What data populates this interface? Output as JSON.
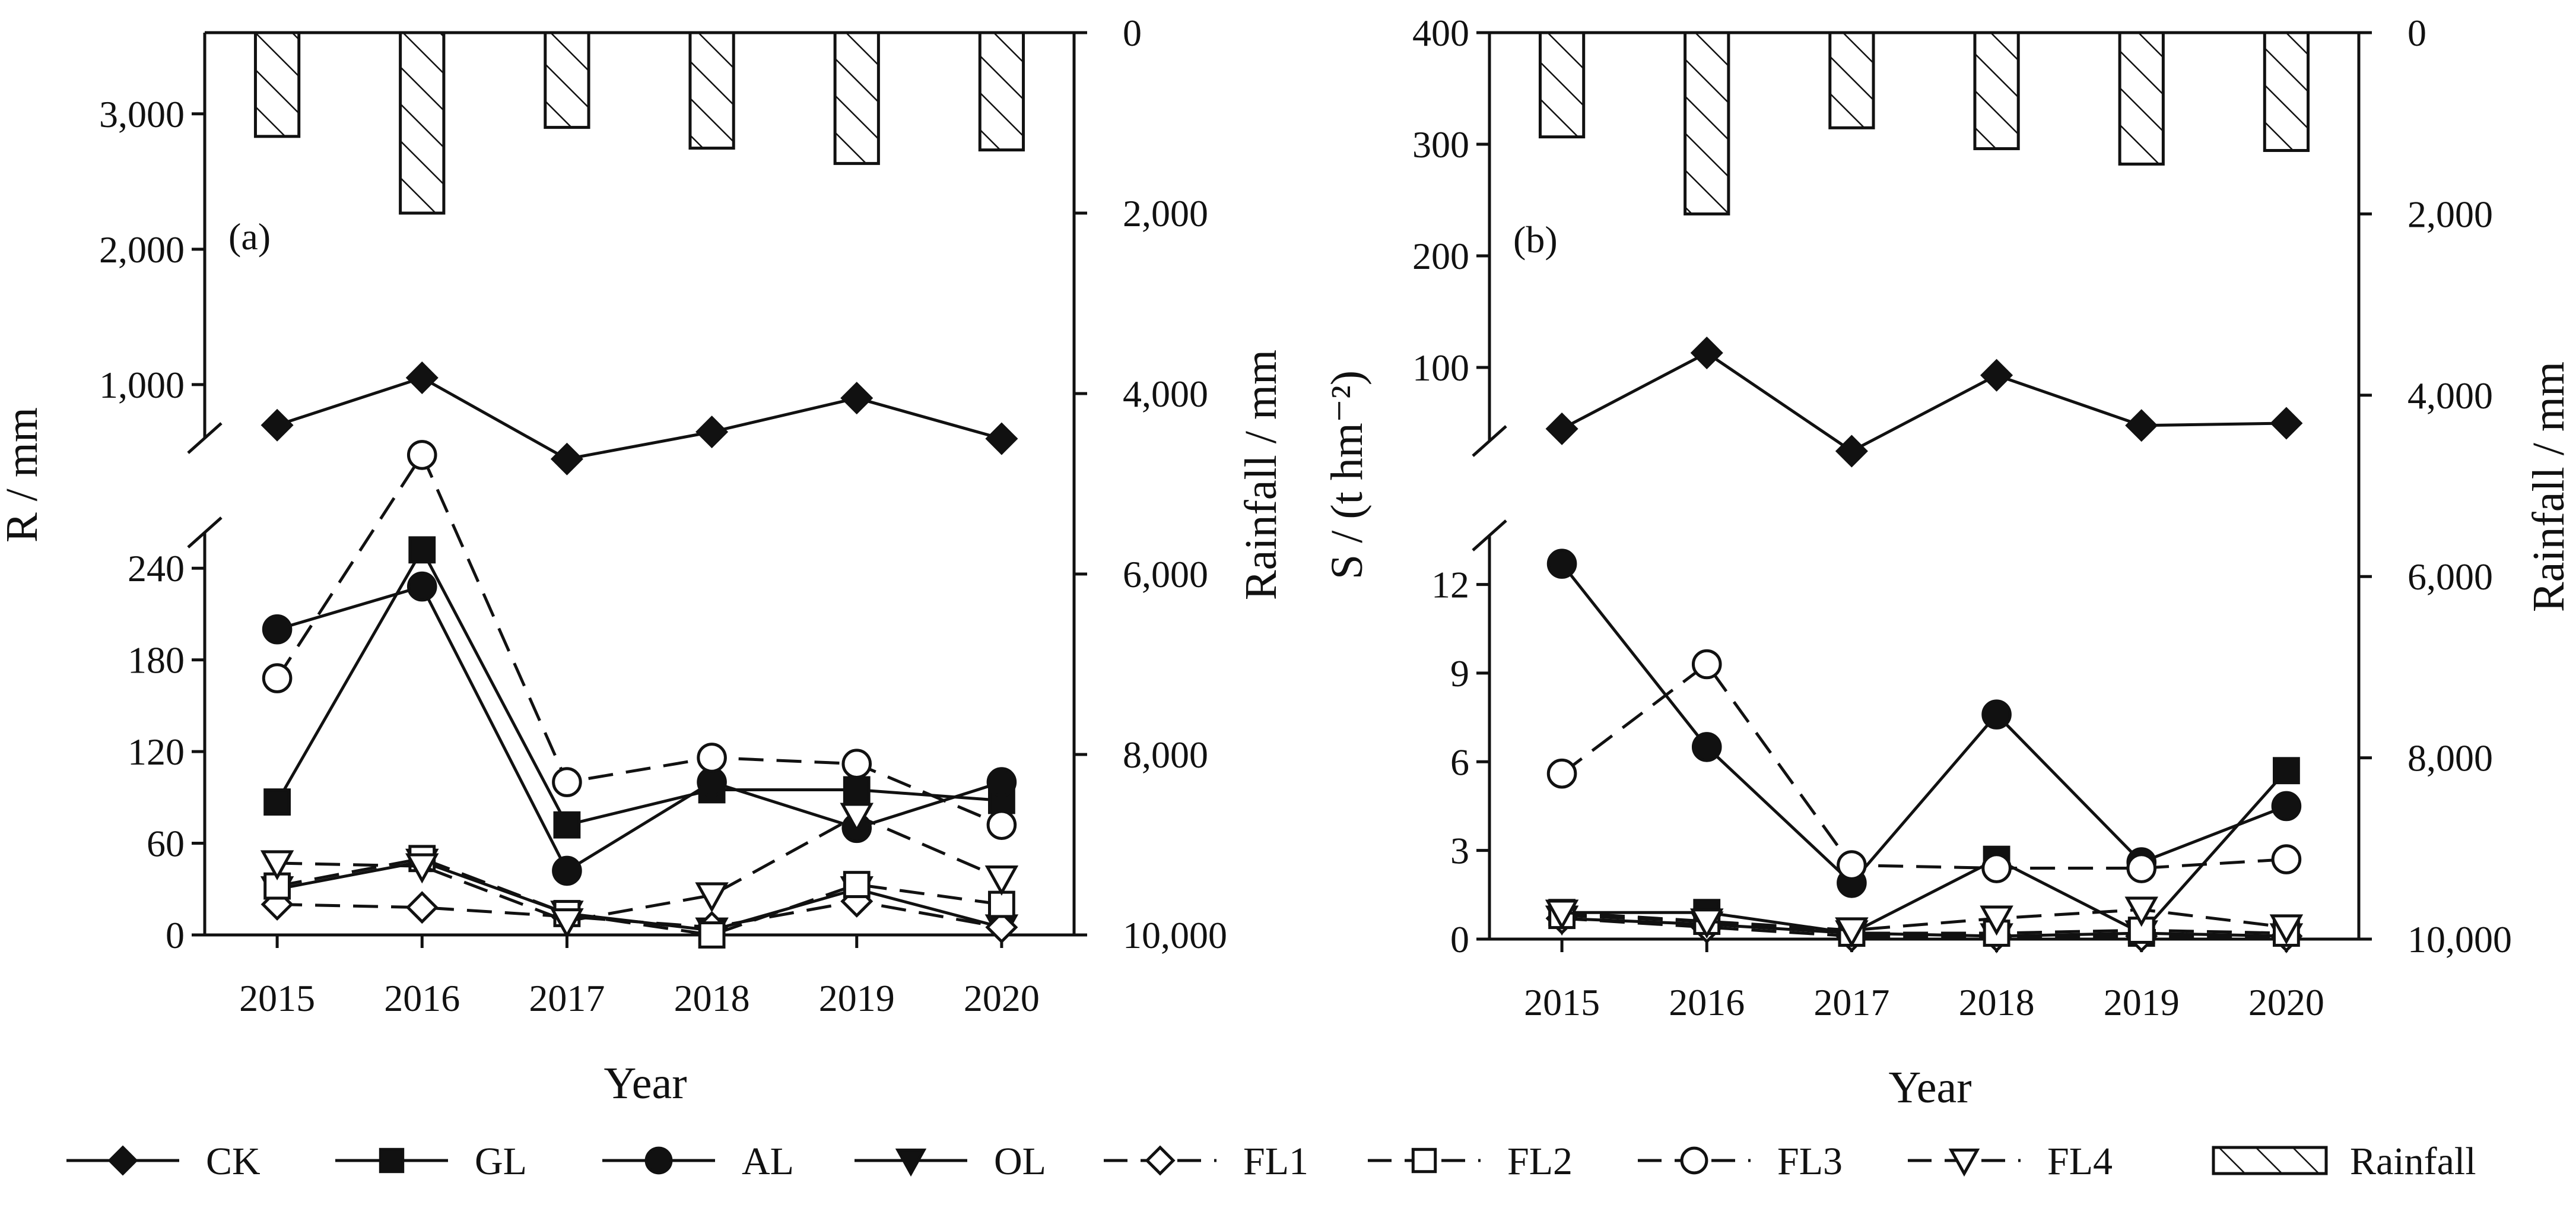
{
  "legend": {
    "items": [
      {
        "key": "CK",
        "label": "CK"
      },
      {
        "key": "GL",
        "label": "GL"
      },
      {
        "key": "AL",
        "label": "AL"
      },
      {
        "key": "OL",
        "label": "OL"
      },
      {
        "key": "FL1",
        "label": "FL1"
      },
      {
        "key": "FL2",
        "label": "FL2"
      },
      {
        "key": "FL3",
        "label": "FL3"
      },
      {
        "key": "FL4",
        "label": "FL4"
      },
      {
        "key": "Rainfall",
        "label": "Rainfall"
      }
    ]
  },
  "chart_data": [
    {
      "type": "line",
      "panel_label": "(a)",
      "xlabel": "Year",
      "ylabel": "R / mm",
      "y2label": "Rainfall / mm",
      "categories": [
        "2015",
        "2016",
        "2017",
        "2018",
        "2019",
        "2020"
      ],
      "y_axis_break": true,
      "ylim_lower": [
        0,
        270
      ],
      "yticks_lower": [
        0,
        60,
        120,
        180,
        240
      ],
      "ytick_labels_lower": [
        "0",
        "60",
        "120",
        "180",
        "240"
      ],
      "ylim_upper": [
        530,
        3600
      ],
      "yticks_upper": [
        1000,
        2000,
        3000
      ],
      "ytick_labels_upper": [
        "1,000",
        "2,000",
        "3,000"
      ],
      "y2lim_inverted": [
        0,
        10000
      ],
      "y2ticks": [
        0,
        2000,
        4000,
        6000,
        8000,
        10000
      ],
      "y2tick_labels": [
        "0",
        "2,000",
        "4,000",
        "6,000",
        "8,000",
        "10,000"
      ],
      "rainfall": [
        1150,
        2000,
        1050,
        1280,
        1450,
        1300
      ],
      "series": [
        {
          "name": "CK",
          "values": [
            700,
            1050,
            450,
            650,
            900,
            600
          ]
        },
        {
          "name": "GL",
          "values": [
            87,
            252,
            72,
            95,
            95,
            88
          ]
        },
        {
          "name": "AL",
          "values": [
            200,
            228,
            42,
            100,
            70,
            100
          ]
        },
        {
          "name": "OL",
          "values": [
            30,
            48,
            14,
            3,
            30,
            5
          ]
        },
        {
          "name": "FL1",
          "values": [
            20,
            18,
            12,
            5,
            22,
            5
          ]
        },
        {
          "name": "FL2",
          "values": [
            32,
            50,
            14,
            0,
            33,
            20
          ]
        },
        {
          "name": "FL3",
          "values": [
            168,
            480,
            100,
            116,
            112,
            72
          ]
        },
        {
          "name": "FL4",
          "values": [
            47,
            45,
            9,
            26,
            78,
            37
          ]
        }
      ]
    },
    {
      "type": "line",
      "panel_label": "(b)",
      "xlabel": "Year",
      "ylabel": "S / (t hm⁻²)",
      "y2label": "Rainfall / mm",
      "categories": [
        "2015",
        "2016",
        "2017",
        "2018",
        "2019",
        "2020"
      ],
      "y_axis_break": true,
      "ylim_lower": [
        0,
        14
      ],
      "yticks_lower": [
        0,
        3,
        6,
        9,
        12
      ],
      "ytick_labels_lower": [
        "0",
        "3",
        "6",
        "9",
        "12"
      ],
      "ylim_upper": [
        25,
        400
      ],
      "yticks_upper": [
        100,
        200,
        300,
        400
      ],
      "ytick_labels_upper": [
        "100",
        "200",
        "300",
        "400"
      ],
      "y2lim_inverted": [
        0,
        10000
      ],
      "y2ticks": [
        0,
        2000,
        4000,
        6000,
        8000,
        10000
      ],
      "y2tick_labels": [
        "0",
        "2,000",
        "4,000",
        "6,000",
        "8,000",
        "10,000"
      ],
      "rainfall": [
        1150,
        2000,
        1050,
        1280,
        1450,
        1300
      ],
      "series": [
        {
          "name": "CK",
          "values": [
            45,
            113,
            25,
            93,
            48,
            50
          ]
        },
        {
          "name": "GL",
          "values": [
            0.9,
            0.9,
            0.2,
            2.7,
            0.2,
            5.7
          ]
        },
        {
          "name": "AL",
          "values": [
            12.7,
            6.5,
            1.9,
            7.6,
            2.6,
            4.5
          ]
        },
        {
          "name": "OL",
          "values": [
            0.7,
            0.5,
            0.2,
            0.1,
            0.2,
            0.1
          ]
        },
        {
          "name": "FL1",
          "values": [
            0.7,
            0.4,
            0.1,
            0.1,
            0.1,
            0.1
          ]
        },
        {
          "name": "FL2",
          "values": [
            0.8,
            0.6,
            0.2,
            0.2,
            0.3,
            0.2
          ]
        },
        {
          "name": "FL3",
          "values": [
            5.6,
            9.3,
            2.5,
            2.4,
            2.4,
            2.7
          ]
        },
        {
          "name": "FL4",
          "values": [
            0.9,
            0.6,
            0.3,
            0.7,
            1.0,
            0.4
          ]
        }
      ]
    }
  ]
}
